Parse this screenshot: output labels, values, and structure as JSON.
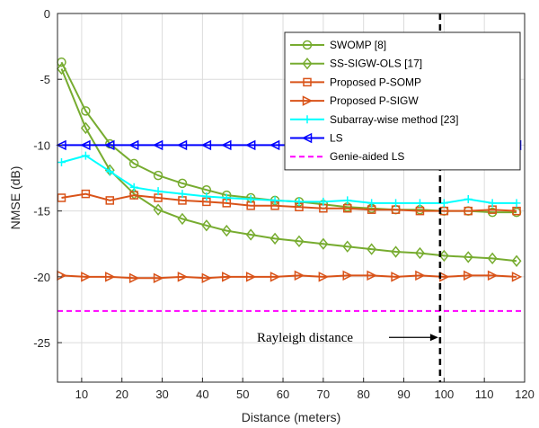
{
  "chart_data": {
    "type": "line",
    "xlabel": "Distance (meters)",
    "ylabel": "NMSE (dB)",
    "xlim": [
      4,
      120
    ],
    "ylim": [
      -28,
      0
    ],
    "xticks": [
      10,
      20,
      30,
      40,
      50,
      60,
      70,
      80,
      90,
      100,
      110,
      120
    ],
    "yticks": [
      0,
      -5,
      -10,
      -15,
      -20,
      -25
    ],
    "grid": true,
    "legend_position": "top-right",
    "series": [
      {
        "name": "SWOMP [8]",
        "color": "#77ac30",
        "marker": "circle",
        "x": [
          5,
          11,
          17,
          23,
          29,
          35,
          41,
          46,
          52,
          58,
          64,
          70,
          76,
          82,
          88,
          94,
          100,
          106,
          112,
          118
        ],
        "y": [
          -3.7,
          -7.4,
          -9.9,
          -11.4,
          -12.3,
          -12.9,
          -13.4,
          -13.8,
          -14.0,
          -14.2,
          -14.3,
          -14.5,
          -14.7,
          -14.8,
          -14.9,
          -14.9,
          -15.0,
          -15.0,
          -15.1,
          -15.1
        ]
      },
      {
        "name": "SS-SIGW-OLS [17]",
        "color": "#77ac30",
        "marker": "diamond",
        "x": [
          5,
          11,
          17,
          23,
          29,
          35,
          41,
          46,
          52,
          58,
          64,
          70,
          76,
          82,
          88,
          94,
          100,
          106,
          112,
          118
        ],
        "y": [
          -4.2,
          -8.7,
          -11.9,
          -13.7,
          -14.9,
          -15.6,
          -16.1,
          -16.5,
          -16.8,
          -17.1,
          -17.3,
          -17.5,
          -17.7,
          -17.9,
          -18.1,
          -18.2,
          -18.4,
          -18.5,
          -18.6,
          -18.8
        ]
      },
      {
        "name": "Proposed P-SOMP",
        "color": "#d95319",
        "marker": "square",
        "x": [
          5,
          11,
          17,
          23,
          29,
          35,
          41,
          46,
          52,
          58,
          64,
          70,
          76,
          82,
          88,
          94,
          100,
          106,
          112,
          118
        ],
        "y": [
          -14.0,
          -13.7,
          -14.2,
          -13.8,
          -14.0,
          -14.2,
          -14.3,
          -14.4,
          -14.6,
          -14.6,
          -14.7,
          -14.8,
          -14.8,
          -14.9,
          -14.9,
          -15.0,
          -15.0,
          -15.0,
          -14.9,
          -15.0
        ]
      },
      {
        "name": "Proposed P-SIGW",
        "color": "#d95319",
        "marker": "triangle-right",
        "x": [
          5,
          11,
          17,
          23,
          29,
          35,
          41,
          46,
          52,
          58,
          64,
          70,
          76,
          82,
          88,
          94,
          100,
          106,
          112,
          118
        ],
        "y": [
          -19.9,
          -20.0,
          -20.0,
          -20.1,
          -20.1,
          -20.0,
          -20.1,
          -20.0,
          -20.0,
          -20.0,
          -19.9,
          -20.0,
          -19.9,
          -19.9,
          -20.0,
          -19.9,
          -20.0,
          -19.9,
          -19.9,
          -20.0
        ]
      },
      {
        "name": "Subarray-wise method [23]",
        "color": "#00ffff",
        "marker": "plus",
        "x": [
          5,
          11,
          17,
          23,
          29,
          35,
          41,
          46,
          52,
          58,
          64,
          70,
          76,
          82,
          88,
          94,
          100,
          106,
          112,
          118
        ],
        "y": [
          -11.3,
          -10.8,
          -12.0,
          -13.2,
          -13.5,
          -13.7,
          -13.9,
          -14.0,
          -14.1,
          -14.2,
          -14.3,
          -14.3,
          -14.2,
          -14.4,
          -14.4,
          -14.4,
          -14.4,
          -14.1,
          -14.4,
          -14.4
        ]
      },
      {
        "name": "LS",
        "color": "#0000ff",
        "marker": "triangle-left",
        "x": [
          5,
          11,
          17,
          23,
          29,
          35,
          41,
          46,
          52,
          58,
          64,
          70,
          76,
          82,
          88,
          94,
          100,
          106,
          112,
          118
        ],
        "y": [
          -10,
          -10,
          -10,
          -10,
          -10,
          -10,
          -10,
          -10,
          -10,
          -10,
          -10,
          -10,
          -10,
          -10,
          -10,
          -10,
          -10,
          -10,
          -10,
          -10
        ]
      },
      {
        "name": "Genie-aided LS",
        "color": "#ff00ff",
        "marker": "none",
        "dashed": true,
        "x": [
          4,
          120
        ],
        "y": [
          -22.6,
          -22.6
        ]
      }
    ],
    "annotation": {
      "text": "Rayleigh distance",
      "vline_x": 99
    }
  }
}
